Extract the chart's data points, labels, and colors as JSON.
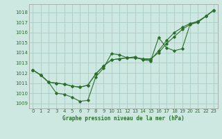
{
  "title": "Graphe pression niveau de la mer (hPa)",
  "bg_color": "#cce8e0",
  "grid_color": "#aaccC4",
  "line_color": "#2d6e2d",
  "xlim": [
    -0.5,
    23.5
  ],
  "ylim": [
    1008.5,
    1018.8
  ],
  "yticks": [
    1009,
    1010,
    1011,
    1012,
    1013,
    1014,
    1015,
    1016,
    1017,
    1018
  ],
  "xticks": [
    0,
    1,
    2,
    3,
    4,
    5,
    6,
    7,
    8,
    9,
    10,
    11,
    12,
    13,
    14,
    15,
    16,
    17,
    18,
    19,
    20,
    21,
    22,
    23
  ],
  "series": [
    [
      1012.3,
      1011.8,
      1011.1,
      1010.0,
      1009.9,
      1009.6,
      1009.2,
      1009.3,
      1011.6,
      1012.5,
      1013.9,
      1013.8,
      1013.5,
      1013.6,
      1013.3,
      1013.2,
      1015.5,
      1014.5,
      1014.2,
      1014.4,
      1016.8,
      1017.0,
      1017.6,
      1018.2
    ],
    [
      1012.3,
      1011.8,
      1011.1,
      1011.0,
      1010.9,
      1010.7,
      1010.6,
      1010.8,
      1011.9,
      1012.7,
      1013.3,
      1013.4,
      1013.5,
      1013.5,
      1013.4,
      1013.4,
      1014.0,
      1014.9,
      1015.6,
      1016.3,
      1016.8,
      1017.1,
      1017.6,
      1018.2
    ],
    [
      1012.3,
      1011.8,
      1011.1,
      1011.0,
      1010.9,
      1010.7,
      1010.6,
      1010.8,
      1011.9,
      1012.7,
      1013.3,
      1013.4,
      1013.5,
      1013.5,
      1013.4,
      1013.3,
      1014.2,
      1015.2,
      1016.0,
      1016.5,
      1016.9,
      1017.1,
      1017.6,
      1018.2
    ]
  ]
}
